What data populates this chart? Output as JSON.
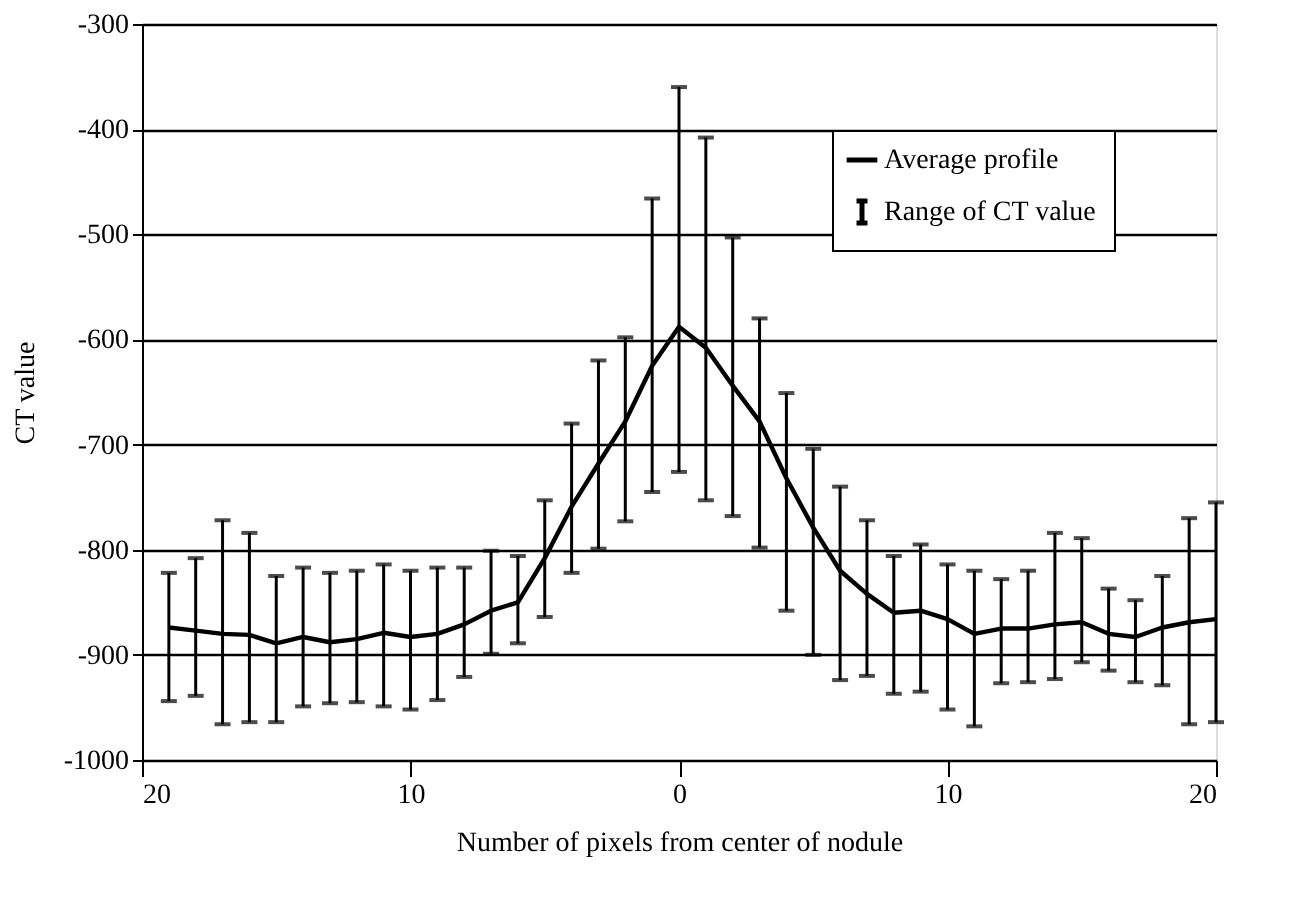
{
  "chart_data": {
    "type": "line",
    "xlabel": "Number of pixels from center of nodule",
    "ylabel": "CT value",
    "x": [
      -19,
      -18,
      -17,
      -16,
      -15,
      -14,
      -13,
      -12,
      -11,
      -10,
      -9,
      -8,
      -7,
      -6,
      -5,
      -4,
      -3,
      -2,
      -1,
      0,
      1,
      2,
      3,
      4,
      5,
      6,
      7,
      8,
      9,
      10,
      11,
      12,
      13,
      14,
      15,
      16,
      17,
      18,
      19,
      20
    ],
    "series": [
      {
        "name": "Average profile",
        "color": "#000000",
        "values": [
          -874,
          -877,
          -880,
          -881,
          -889,
          -883,
          -888,
          -885,
          -879,
          -883,
          -880,
          -871,
          -858,
          -850,
          -808,
          -759,
          -718,
          -678,
          -625,
          -588,
          -608,
          -644,
          -678,
          -732,
          -779,
          -820,
          -842,
          -860,
          -858,
          -866,
          -880,
          -875,
          -875,
          -871,
          -869,
          -880,
          -883,
          -874,
          -869,
          -866
        ],
        "errors": [
          [
            -944,
            -822
          ],
          [
            -939,
            -808
          ],
          [
            -966,
            -772
          ],
          [
            -964,
            -784
          ],
          [
            -964,
            -825
          ],
          [
            -949,
            -817
          ],
          [
            -946,
            -822
          ],
          [
            -945,
            -820
          ],
          [
            -949,
            -814
          ],
          [
            -952,
            -820
          ],
          [
            -943,
            -817
          ],
          [
            -921,
            -817
          ],
          [
            -899,
            -801
          ],
          [
            -889,
            -806
          ],
          [
            -864,
            -753
          ],
          [
            -822,
            -680
          ],
          [
            -799,
            -620
          ],
          [
            -773,
            -598
          ],
          [
            -745,
            -466
          ],
          [
            -726,
            -360
          ],
          [
            -753,
            -408
          ],
          [
            -768,
            -503
          ],
          [
            -798,
            -580
          ],
          [
            -858,
            -651
          ],
          [
            -900,
            -704
          ],
          [
            -924,
            -740
          ],
          [
            -920,
            -772
          ],
          [
            -937,
            -806
          ],
          [
            -935,
            -795
          ],
          [
            -952,
            -814
          ],
          [
            -968,
            -820
          ],
          [
            -927,
            -828
          ],
          [
            -926,
            -820
          ],
          [
            -923,
            -784
          ],
          [
            -907,
            -789
          ],
          [
            -915,
            -837
          ],
          [
            -926,
            -848
          ],
          [
            -929,
            -825
          ],
          [
            -966,
            -770
          ],
          [
            -964,
            -755
          ]
        ]
      }
    ],
    "annotations": [
      "Range of CT value"
    ],
    "xlim": [
      -20,
      20
    ],
    "xticks": [
      {
        "value": -20,
        "label": "20"
      },
      {
        "value": -10,
        "label": "10"
      },
      0,
      {
        "value": 10,
        "label": "10"
      },
      20
    ],
    "ylim": [
      -1000,
      -300
    ],
    "yticks": [
      -1000,
      -900,
      -800,
      -700,
      -600,
      -500,
      -400,
      -300
    ],
    "grid": "y",
    "legend": "top right",
    "marker": "none",
    "line_style": "solid"
  }
}
